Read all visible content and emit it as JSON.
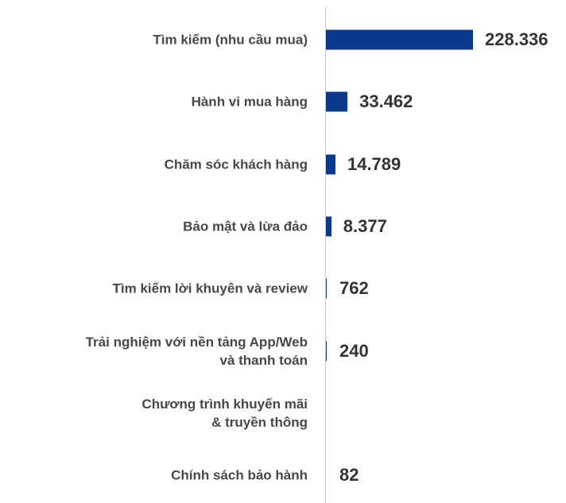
{
  "chart_data": {
    "type": "bar",
    "orientation": "horizontal",
    "categories": [
      "Tìm kiếm (nhu cầu mua)",
      "Hành vi mua hàng",
      "Chăm sóc khách hàng",
      "Bảo mật và lừa đảo",
      "Tìm kiếm lời khuyên và review",
      "Trải nghiệm với nền tảng App/Web\nvà thanh toán",
      "Chương trình khuyến mãi\n& truyền thông",
      "Chính sách bảo hành"
    ],
    "values": [
      228336,
      33462,
      14789,
      8377,
      762,
      240,
      null,
      82
    ],
    "value_labels": [
      "228.336",
      "33.462",
      "14.789",
      "8.377",
      "762",
      "240",
      null,
      "82"
    ],
    "color": "#0b3a8c"
  }
}
